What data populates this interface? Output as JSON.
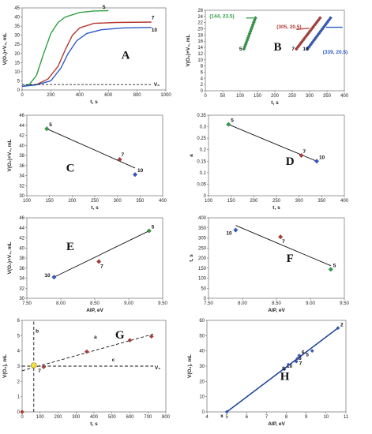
{
  "chart_data": [
    {
      "id": "A",
      "type": "line",
      "panel_label": "A",
      "xlabel": "t, s",
      "ylabel": "V(O₂)+V₀, mL",
      "xlim": [
        0,
        1000
      ],
      "ylim": [
        0,
        45
      ],
      "xticks": [
        0,
        200,
        400,
        600,
        800,
        1000
      ],
      "yticks": [
        0,
        5,
        10,
        15,
        20,
        25,
        30,
        35,
        40,
        45
      ],
      "series": [
        {
          "name": "5",
          "color": "#2ea043",
          "points": [
            [
              0,
              2
            ],
            [
              50,
              3
            ],
            [
              100,
              8
            ],
            [
              150,
              20
            ],
            [
              200,
              31
            ],
            [
              250,
              37
            ],
            [
              300,
              40
            ],
            [
              400,
              42.5
            ],
            [
              500,
              43.3
            ],
            [
              600,
              43.5
            ]
          ]
        },
        {
          "name": "7",
          "color": "#b23a33",
          "points": [
            [
              0,
              2
            ],
            [
              100,
              3
            ],
            [
              180,
              6
            ],
            [
              250,
              13
            ],
            [
              300,
              22
            ],
            [
              350,
              30
            ],
            [
              400,
              34
            ],
            [
              500,
              36.5
            ],
            [
              650,
              37
            ],
            [
              900,
              37.2
            ]
          ]
        },
        {
          "name": "10",
          "color": "#2d5bc9",
          "points": [
            [
              0,
              2
            ],
            [
              100,
              2.8
            ],
            [
              200,
              5
            ],
            [
              270,
              12
            ],
            [
              320,
              20
            ],
            [
              380,
              27
            ],
            [
              450,
              31
            ],
            [
              550,
              33
            ],
            [
              700,
              34
            ],
            [
              900,
              34.3
            ]
          ]
        },
        {
          "name": "V₀",
          "color": "#000000",
          "dashed": true,
          "points": [
            [
              0,
              3
            ],
            [
              900,
              3
            ]
          ]
        }
      ]
    },
    {
      "id": "B",
      "type": "scatter",
      "panel_label": "B",
      "xlabel": "t, s",
      "ylabel": "V(O₂)+V₀, mL",
      "xlim": [
        0,
        400
      ],
      "ylim": [
        0,
        26
      ],
      "xticks": [
        0,
        50,
        100,
        150,
        200,
        250,
        300,
        350,
        400
      ],
      "yticks": [
        0,
        2,
        4,
        6,
        8,
        10,
        12,
        14,
        16,
        18,
        20,
        22,
        24,
        26
      ],
      "series": [
        {
          "name": "5",
          "color": "#2ea043",
          "x_start": 111,
          "x_end": 144,
          "y_start": 13.5,
          "y_end": 23.5
        },
        {
          "name": "7",
          "color": "#b23a33",
          "x_start": 262,
          "x_end": 330,
          "y_start": 13.5,
          "y_end": 23.5
        },
        {
          "name": "10",
          "color": "#2d5bc9",
          "x_start": 294,
          "x_end": 360,
          "y_start": 13.5,
          "y_end": 23.5
        }
      ],
      "annotations": [
        {
          "text": "(144, 23.5)",
          "color": "#2ea043"
        },
        {
          "text": "(305, 20.5)",
          "color": "#b23a33"
        },
        {
          "text": "(339, 20.5)",
          "color": "#2d5bc9"
        }
      ]
    },
    {
      "id": "C",
      "type": "scatter",
      "panel_label": "C",
      "xlabel": "t, s",
      "ylabel": "V(O₂)+V₀, mL",
      "xlim": [
        100,
        400
      ],
      "ylim": [
        30,
        46
      ],
      "xticks": [
        100,
        150,
        200,
        250,
        300,
        350,
        400
      ],
      "yticks": [
        30,
        32,
        34,
        36,
        38,
        40,
        42,
        44,
        46
      ],
      "points": [
        {
          "label": "5",
          "x": 144,
          "y": 43.3,
          "color": "#2ea043"
        },
        {
          "label": "7",
          "x": 305,
          "y": 37.2,
          "color": "#b23a33"
        },
        {
          "label": "10",
          "x": 339,
          "y": 34.2,
          "color": "#2d5bc9"
        }
      ],
      "fit": [
        [
          144,
          43.3
        ],
        [
          339,
          35.5
        ]
      ]
    },
    {
      "id": "D",
      "type": "scatter",
      "panel_label": "D",
      "xlabel": "t, s",
      "ylabel": "a",
      "xlim": [
        100,
        400
      ],
      "ylim": [
        0,
        0.35
      ],
      "xticks": [
        100,
        150,
        200,
        250,
        300,
        350,
        400
      ],
      "yticks": [
        0,
        0.05,
        0.1,
        0.15,
        0.2,
        0.25,
        0.3,
        0.35
      ],
      "points": [
        {
          "label": "5",
          "x": 144,
          "y": 0.31,
          "color": "#2ea043"
        },
        {
          "label": "7",
          "x": 305,
          "y": 0.175,
          "color": "#b23a33"
        },
        {
          "label": "10",
          "x": 339,
          "y": 0.15,
          "color": "#2d5bc9"
        }
      ],
      "fit": [
        [
          144,
          0.31
        ],
        [
          339,
          0.15
        ]
      ]
    },
    {
      "id": "E",
      "type": "scatter",
      "panel_label": "E",
      "xlabel": "AIP, eV",
      "ylabel": "V(O₂)+V₀, mL",
      "xlim": [
        7.5,
        9.5
      ],
      "ylim": [
        30,
        46
      ],
      "xticks": [
        7.5,
        8.0,
        8.5,
        9.0,
        9.5
      ],
      "yticks": [
        30,
        32,
        34,
        36,
        38,
        40,
        42,
        44,
        46
      ],
      "tick_format": 2,
      "points": [
        {
          "label": "10",
          "x": 7.9,
          "y": 34.2,
          "color": "#2d5bc9"
        },
        {
          "label": "7",
          "x": 8.56,
          "y": 37.3,
          "color": "#b23a33"
        },
        {
          "label": "5",
          "x": 9.3,
          "y": 43.4,
          "color": "#2ea043"
        }
      ],
      "fit": [
        [
          7.9,
          34.2
        ],
        [
          9.3,
          43.4
        ]
      ]
    },
    {
      "id": "F",
      "type": "scatter",
      "panel_label": "F",
      "xlabel": "AIP, eV",
      "ylabel": "t, s",
      "xlim": [
        7.5,
        9.5
      ],
      "ylim": [
        0,
        400
      ],
      "xticks": [
        7.5,
        8.0,
        8.5,
        9.0,
        9.5
      ],
      "yticks": [
        0,
        50,
        100,
        150,
        200,
        250,
        300,
        350,
        400
      ],
      "tick_format": 2,
      "points": [
        {
          "label": "10",
          "x": 7.9,
          "y": 339,
          "color": "#2d5bc9"
        },
        {
          "label": "7",
          "x": 8.56,
          "y": 305,
          "color": "#b23a33"
        },
        {
          "label": "5",
          "x": 9.3,
          "y": 144,
          "color": "#2ea043"
        }
      ],
      "fit": [
        [
          7.9,
          362
        ],
        [
          9.3,
          162
        ]
      ]
    },
    {
      "id": "G",
      "type": "scatter",
      "panel_label": "G",
      "xlabel": "t, s",
      "ylabel": "V(O₂), mL",
      "xlim": [
        0,
        800
      ],
      "ylim": [
        0,
        6
      ],
      "xticks": [
        0,
        100,
        200,
        300,
        400,
        500,
        600,
        700,
        800
      ],
      "yticks": [
        0,
        1,
        2,
        3,
        4,
        5,
        6
      ],
      "points": [
        {
          "label": "",
          "x": 0,
          "y": 0,
          "color": "#c0392b"
        },
        {
          "label": "7",
          "x": 120,
          "y": 2.95,
          "color": "#b23a33"
        },
        {
          "label": "",
          "x": 360,
          "y": 3.95,
          "color": "#b23a33"
        },
        {
          "label": "",
          "x": 600,
          "y": 4.7,
          "color": "#b23a33"
        },
        {
          "label": "",
          "x": 720,
          "y": 4.95,
          "color": "#b23a33"
        }
      ],
      "lines": [
        {
          "name": "a",
          "points": [
            [
              0,
              2.7
            ],
            [
              730,
              5.1
            ]
          ]
        },
        {
          "name": "b",
          "points": [
            [
              65,
              0
            ],
            [
              65,
              6
            ]
          ]
        },
        {
          "name": "c",
          "points": [
            [
              0,
              3.0
            ],
            [
              730,
              3.0
            ]
          ]
        }
      ],
      "highlight": {
        "x": 65,
        "y": 3.05
      },
      "labels": {
        "a": "a",
        "b": "b",
        "c": "c",
        "v0": "V₀"
      }
    },
    {
      "id": "H",
      "type": "scatter",
      "panel_label": "H",
      "xlabel": "AIP, eV",
      "ylabel": "V(O₂), mL",
      "xlim": [
        4,
        11
      ],
      "ylim": [
        0,
        60
      ],
      "xticks": [
        4,
        5,
        6,
        7,
        8,
        9,
        10,
        11
      ],
      "yticks": [
        0,
        10,
        20,
        30,
        40,
        50,
        60
      ],
      "points": [
        {
          "label": "x",
          "x": 5.0,
          "y": 0,
          "color": "#2d5bc9"
        },
        {
          "label": "10",
          "x": 7.9,
          "y": 28,
          "color": "#2d5bc9"
        },
        {
          "label": "9",
          "x": 8.1,
          "y": 31,
          "color": "#2d5bc9"
        },
        {
          "label": "8",
          "x": 8.5,
          "y": 33,
          "color": "#2d5bc9"
        },
        {
          "label": "7",
          "x": 8.56,
          "y": 35,
          "color": "#2d5bc9"
        },
        {
          "label": "6",
          "x": 8.65,
          "y": 37,
          "color": "#2d5bc9"
        },
        {
          "label": "5",
          "x": 9.3,
          "y": 40,
          "color": "#2d5bc9"
        },
        {
          "label": "2",
          "x": 10.6,
          "y": 55,
          "color": "#2d5bc9"
        }
      ],
      "fit": [
        [
          5.0,
          0
        ],
        [
          10.6,
          55
        ]
      ]
    }
  ]
}
